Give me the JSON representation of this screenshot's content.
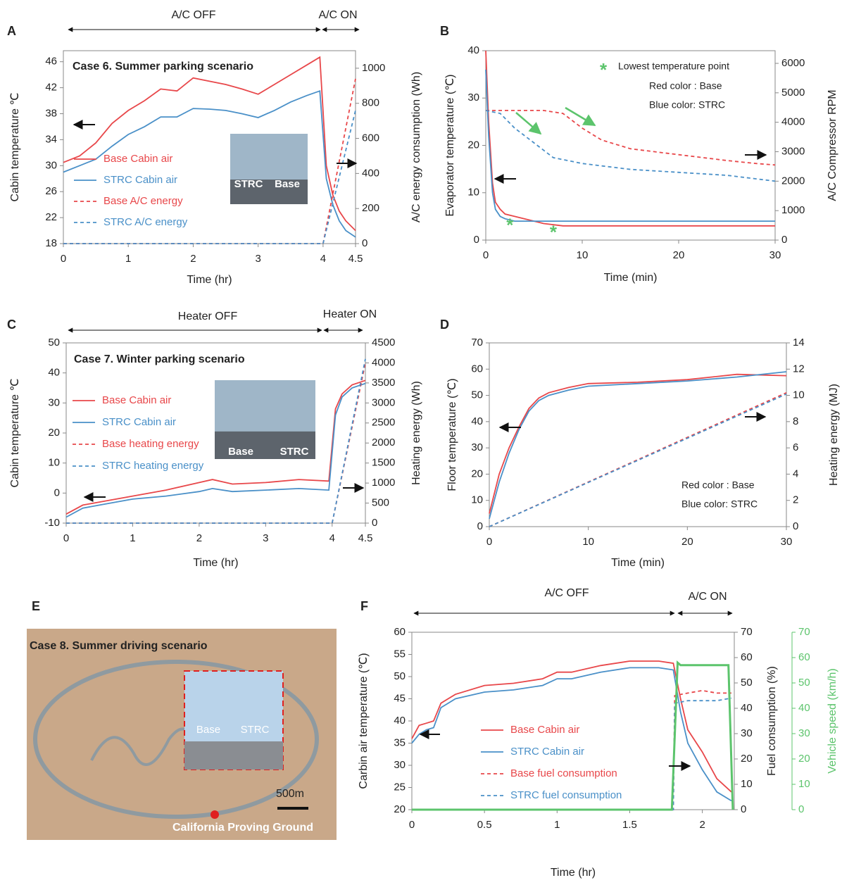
{
  "chart_data": [
    {
      "type": "line",
      "panel": "A",
      "annotation": "Case 6. Summer parking  scenario",
      "off_label": "A/C OFF",
      "on_label": "A/C ON",
      "x_label": "Time (hr)",
      "y_label": "Cabin temperature ℃",
      "y2_label": "A/C energy consumption (Wh)",
      "xlim": [
        0,
        4.5
      ],
      "xticks": [
        0,
        1,
        2,
        3,
        4,
        4.5
      ],
      "ylim": [
        18,
        47.7
      ],
      "yticks": [
        18,
        22,
        26,
        30,
        34,
        38,
        42,
        46
      ],
      "y2lim": [
        0,
        1100
      ],
      "y2ticks": [
        0,
        200,
        400,
        600,
        800,
        1000
      ],
      "photo_labels": [
        "STRC",
        "Base"
      ],
      "series": [
        {
          "name": "Base Cabin air",
          "color": "#e8474a",
          "x": [
            0,
            0.25,
            0.5,
            0.75,
            1,
            1.25,
            1.5,
            1.75,
            2,
            2.25,
            2.5,
            2.75,
            3,
            3.25,
            3.5,
            3.75,
            3.95,
            4.05,
            4.15,
            4.25,
            4.35,
            4.5
          ],
          "values": [
            30.5,
            31.5,
            33.5,
            36.5,
            38.5,
            40,
            41.8,
            41.5,
            43.5,
            43,
            42.5,
            41.8,
            41,
            42.5,
            44,
            45.5,
            46.7,
            30,
            25.5,
            23,
            21.5,
            20
          ]
        },
        {
          "name": "STRC Cabin air",
          "color": "#4a90c8",
          "x": [
            0,
            0.25,
            0.5,
            0.75,
            1,
            1.25,
            1.5,
            1.75,
            2,
            2.25,
            2.5,
            2.75,
            3,
            3.25,
            3.5,
            3.75,
            3.95,
            4.05,
            4.15,
            4.25,
            4.35,
            4.5
          ],
          "values": [
            29,
            30,
            31,
            33,
            34.8,
            36,
            37.5,
            37.5,
            38.8,
            38.7,
            38.5,
            38,
            37.4,
            38.5,
            39.8,
            40.8,
            41.5,
            28,
            24,
            21.5,
            20,
            19
          ]
        },
        {
          "name": "Base A/C energy",
          "color": "#e8474a",
          "dash": true,
          "axis": "y2",
          "x": [
            0,
            4,
            4.5
          ],
          "values": [
            0,
            0,
            940
          ]
        },
        {
          "name": "STRC A/C energy",
          "color": "#4a90c8",
          "dash": true,
          "axis": "y2",
          "x": [
            0,
            4,
            4.5
          ],
          "values": [
            0,
            0,
            760
          ]
        }
      ]
    },
    {
      "type": "line",
      "panel": "B",
      "x_label": "Time (min)",
      "y_label": "Evaporator temperature (℃)",
      "y2_label": "A/C Compressor RPM",
      "legend_symbol": "*",
      "lowest_label": "Lowest temperature point",
      "notes": [
        "Red color : Base",
        "Blue color: STRC"
      ],
      "lowest_points": {
        "x": [
          2.5,
          7
        ],
        "y": [
          3.5,
          2
        ],
        "color": "#5cc46c"
      },
      "xlim": [
        0,
        30
      ],
      "xticks": [
        0,
        10,
        20,
        30
      ],
      "ylim": [
        0,
        40
      ],
      "yticks": [
        0,
        10,
        20,
        30,
        40
      ],
      "y2lim": [
        0,
        6430
      ],
      "y2ticks": [
        0,
        1000,
        2000,
        3000,
        4000,
        5000,
        6000
      ],
      "series": [
        {
          "color": "#e8474a",
          "x": [
            0,
            0.3,
            0.7,
            1,
            1.5,
            2,
            3,
            4,
            5,
            6,
            8,
            10,
            30
          ],
          "values": [
            40,
            25,
            12,
            8,
            6.5,
            5.5,
            5,
            4.5,
            4,
            3.5,
            3,
            3,
            3
          ]
        },
        {
          "color": "#4a90c8",
          "x": [
            0,
            0.3,
            0.7,
            1,
            1.5,
            2,
            3,
            4,
            5,
            6,
            8,
            10,
            30
          ],
          "values": [
            36,
            22,
            10,
            6.5,
            5,
            4.5,
            4,
            4,
            4,
            4,
            4,
            4,
            4
          ]
        },
        {
          "color": "#e8474a",
          "dash": true,
          "axis": "y2",
          "x": [
            0,
            3,
            6,
            8,
            10,
            12,
            15,
            20,
            25,
            28,
            30
          ],
          "values": [
            4400,
            4400,
            4400,
            4300,
            3800,
            3400,
            3100,
            2900,
            2700,
            2600,
            2550
          ]
        },
        {
          "color": "#4a90c8",
          "dash": true,
          "axis": "y2",
          "x": [
            0,
            1.5,
            3,
            5,
            7,
            10,
            15,
            20,
            25,
            30
          ],
          "values": [
            4400,
            4300,
            3800,
            3300,
            2800,
            2600,
            2400,
            2300,
            2200,
            2000
          ]
        }
      ]
    },
    {
      "type": "line",
      "panel": "C",
      "annotation": "Case 7. Winter parking scenario",
      "off_label": "Heater OFF",
      "on_label": "Heater ON",
      "x_label": "Time (hr)",
      "y_label": "Cabin temperature ℃",
      "y2_label": "Heating energy (Wh)",
      "xlim": [
        0,
        4.5
      ],
      "xticks": [
        0,
        1,
        2,
        3,
        4,
        4.5
      ],
      "ylim": [
        -10,
        50
      ],
      "yticks": [
        -10,
        0,
        10,
        20,
        30,
        40,
        50
      ],
      "y2lim": [
        0,
        4500
      ],
      "y2ticks": [
        0,
        500,
        1000,
        1500,
        2000,
        2500,
        3000,
        3500,
        4000,
        4500
      ],
      "photo_labels": [
        "Base",
        "STRC"
      ],
      "series": [
        {
          "name": "Base Cabin air",
          "color": "#e8474a",
          "x": [
            0,
            0.25,
            0.5,
            1,
            1.5,
            2,
            2.2,
            2.5,
            3,
            3.5,
            3.95,
            4.05,
            4.15,
            4.3,
            4.5
          ],
          "values": [
            -7,
            -4,
            -3,
            -1,
            1,
            3.5,
            4.5,
            3,
            3.5,
            4.5,
            4,
            28,
            33,
            36,
            37.5
          ]
        },
        {
          "name": "STRC Cabin air",
          "color": "#4a90c8",
          "x": [
            0,
            0.25,
            0.5,
            1,
            1.5,
            2,
            2.2,
            2.5,
            3,
            3.5,
            3.95,
            4.05,
            4.15,
            4.3,
            4.5
          ],
          "values": [
            -8,
            -5,
            -4,
            -2,
            -1,
            0.5,
            1.5,
            0.5,
            1,
            1.5,
            1,
            26,
            32,
            35,
            36.5
          ]
        },
        {
          "name": "Base heating energy",
          "color": "#e8474a",
          "dash": true,
          "axis": "y2",
          "x": [
            0,
            4,
            4.5
          ],
          "values": [
            0,
            0,
            4000
          ]
        },
        {
          "name": "STRC heating energy",
          "color": "#4a90c8",
          "dash": true,
          "axis": "y2",
          "x": [
            0,
            4,
            4.5
          ],
          "values": [
            0,
            0,
            4100
          ]
        }
      ]
    },
    {
      "type": "line",
      "panel": "D",
      "x_label": "Time (min)",
      "y_label": "Floor temperature (℃)",
      "y2_label": "Heating energy (MJ)",
      "notes": [
        "Red color : Base",
        "Blue color: STRC"
      ],
      "xlim": [
        0,
        30
      ],
      "xticks": [
        0,
        10,
        20,
        30
      ],
      "ylim": [
        0,
        70
      ],
      "yticks": [
        0,
        10,
        20,
        30,
        40,
        50,
        60,
        70
      ],
      "y2lim": [
        0,
        14
      ],
      "y2ticks": [
        0,
        2,
        4,
        6,
        8,
        10,
        12,
        14
      ],
      "series": [
        {
          "color": "#e8474a",
          "x": [
            0,
            1,
            2,
            3,
            4,
            5,
            6,
            8,
            10,
            15,
            20,
            25,
            30
          ],
          "values": [
            5,
            20,
            30,
            38,
            45,
            49,
            51,
            53,
            54.5,
            55,
            56,
            58,
            57.5
          ]
        },
        {
          "color": "#4a90c8",
          "x": [
            0,
            1,
            2,
            3,
            4,
            5,
            6,
            8,
            10,
            15,
            20,
            25,
            30
          ],
          "values": [
            3,
            17,
            28,
            37,
            44,
            48,
            50,
            52,
            53.5,
            54.5,
            55.5,
            57,
            59
          ]
        },
        {
          "color": "#e8474a",
          "dash": true,
          "axis": "y2",
          "x": [
            0,
            30
          ],
          "values": [
            0,
            10.2
          ]
        },
        {
          "color": "#4a90c8",
          "dash": true,
          "axis": "y2",
          "x": [
            0,
            30
          ],
          "values": [
            0,
            10.1
          ]
        }
      ]
    },
    {
      "type": "line",
      "panel": "F",
      "off_label": "A/C OFF",
      "on_label": "A/C ON",
      "x_label": "Time (hr)",
      "y_label": "Carbin air temperature (℃)",
      "y2_label": "Fuel consumption (%)",
      "y3_label": "Vehicle speed (km/h)",
      "y3_color": "#5cc46c",
      "xlim": [
        0,
        2.22
      ],
      "xticks": [
        0,
        0.5,
        1,
        1.5,
        2
      ],
      "ylim": [
        20,
        60
      ],
      "yticks": [
        20,
        25,
        30,
        35,
        40,
        45,
        50,
        55,
        60
      ],
      "y2lim": [
        0,
        70
      ],
      "y2ticks": [
        0,
        10,
        20,
        30,
        40,
        50,
        60,
        70
      ],
      "y3lim": [
        0,
        70
      ],
      "y3ticks": [
        0,
        10,
        20,
        30,
        40,
        50,
        60,
        70
      ],
      "series": [
        {
          "name": "Base Cabin air",
          "color": "#e8474a",
          "x": [
            0,
            0.05,
            0.1,
            0.15,
            0.2,
            0.3,
            0.5,
            0.7,
            0.9,
            1,
            1.1,
            1.3,
            1.5,
            1.7,
            1.8,
            1.85,
            1.9,
            2,
            2.1,
            2.2
          ],
          "values": [
            36,
            39,
            39.5,
            40,
            44,
            46,
            48,
            48.5,
            49.5,
            51,
            51,
            52.5,
            53.5,
            53.5,
            53,
            45,
            38,
            33,
            27,
            24
          ]
        },
        {
          "name": "STRC Cabin air",
          "color": "#4a90c8",
          "x": [
            0,
            0.05,
            0.1,
            0.15,
            0.2,
            0.3,
            0.5,
            0.7,
            0.9,
            1,
            1.1,
            1.3,
            1.5,
            1.7,
            1.8,
            1.85,
            1.9,
            2,
            2.1,
            2.2
          ],
          "values": [
            35,
            37,
            38,
            38.5,
            43,
            45,
            46.5,
            47,
            48,
            49.5,
            49.5,
            51,
            52,
            52,
            51.5,
            42,
            35,
            29,
            24,
            22
          ]
        },
        {
          "name": "Base fuel consumption",
          "color": "#e8474a",
          "dash": true,
          "axis": "y2",
          "x": [
            0,
            1.8,
            1.81,
            1.9,
            2,
            2.1,
            2.2
          ],
          "values": [
            0,
            0,
            45,
            46,
            47,
            46,
            46
          ]
        },
        {
          "name": "STRC fuel consumption",
          "color": "#4a90c8",
          "dash": true,
          "axis": "y2",
          "x": [
            0,
            1.8,
            1.81,
            1.9,
            2,
            2.1,
            2.2
          ],
          "values": [
            0,
            0,
            42,
            43,
            43,
            43,
            44
          ]
        },
        {
          "color": "#5cc46c",
          "axis": "y3",
          "x": [
            0,
            1.79,
            1.83,
            1.85,
            2.18,
            2.21
          ],
          "values": [
            0,
            0,
            58,
            57,
            57,
            0
          ]
        }
      ]
    }
  ],
  "photo_panel": {
    "panel": "E",
    "title": "Case 8. Summer driving scenario",
    "labels": [
      "Base",
      "STRC"
    ],
    "scale": "500m",
    "place": "California Proving Ground"
  }
}
